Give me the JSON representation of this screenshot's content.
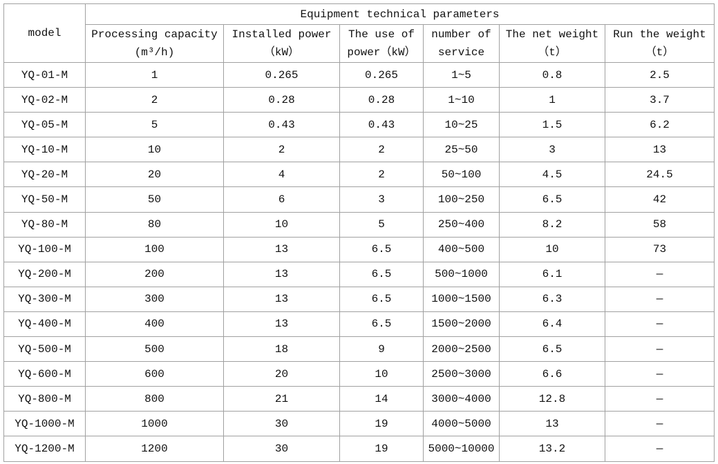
{
  "table": {
    "model_header": "model",
    "group_header": "Equipment technical parameters",
    "headers": [
      [
        "Processing capacity",
        "(m³/h)"
      ],
      [
        "Installed power",
        "（kW）"
      ],
      [
        "The use of",
        "power（kW）"
      ],
      [
        "number of",
        "service"
      ],
      [
        "The net weight",
        "（t）"
      ],
      [
        "Run the weight",
        "（t）"
      ]
    ],
    "rows": [
      [
        "YQ-01-M",
        "1",
        "0.265",
        "0.265",
        "1~5",
        "0.8",
        "2.5"
      ],
      [
        "YQ-02-M",
        "2",
        "0.28",
        "0.28",
        "1~10",
        "1",
        "3.7"
      ],
      [
        "YQ-05-M",
        "5",
        "0.43",
        "0.43",
        "10~25",
        "1.5",
        "6.2"
      ],
      [
        "YQ-10-M",
        "10",
        "2",
        "2",
        "25~50",
        "3",
        "13"
      ],
      [
        "YQ-20-M",
        "20",
        "4",
        "2",
        "50~100",
        "4.5",
        "24.5"
      ],
      [
        "YQ-50-M",
        "50",
        "6",
        "3",
        "100~250",
        "6.5",
        "42"
      ],
      [
        "YQ-80-M",
        "80",
        "10",
        "5",
        "250~400",
        "8.2",
        "58"
      ],
      [
        "YQ-100-M",
        "100",
        "13",
        "6.5",
        "400~500",
        "10",
        "73"
      ],
      [
        "YQ-200-M",
        "200",
        "13",
        "6.5",
        "500~1000",
        "6.1",
        "—"
      ],
      [
        "YQ-300-M",
        "300",
        "13",
        "6.5",
        "1000~1500",
        "6.3",
        "—"
      ],
      [
        "YQ-400-M",
        "400",
        "13",
        "6.5",
        "1500~2000",
        "6.4",
        "—"
      ],
      [
        "YQ-500-M",
        "500",
        "18",
        "9",
        "2000~2500",
        "6.5",
        "—"
      ],
      [
        "YQ-600-M",
        "600",
        "20",
        "10",
        "2500~3000",
        "6.6",
        "—"
      ],
      [
        "YQ-800-M",
        "800",
        "21",
        "14",
        "3000~4000",
        "12.8",
        "—"
      ],
      [
        "YQ-1000-M",
        "1000",
        "30",
        "19",
        "4000~5000",
        "13",
        "—"
      ],
      [
        "YQ-1200-M",
        "1200",
        "30",
        "19",
        "5000~10000",
        "13.2",
        "—"
      ]
    ]
  }
}
